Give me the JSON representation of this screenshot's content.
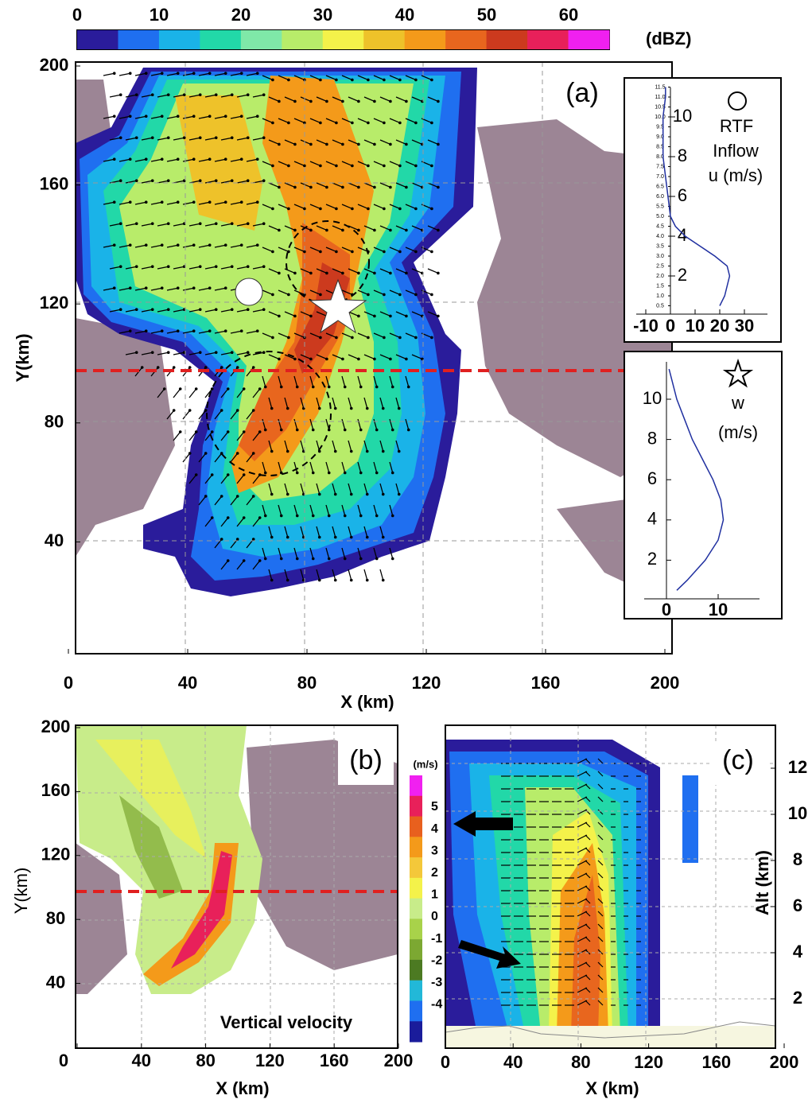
{
  "colorbar_a": {
    "unit": "(dBZ)",
    "ticks": [
      0,
      10,
      20,
      30,
      40,
      50,
      60
    ],
    "colors": [
      "#2a1c9b",
      "#1f6ff0",
      "#1ab3e8",
      "#22d8a8",
      "#7fe8a8",
      "#b8ec6a",
      "#f4f24a",
      "#eec22a",
      "#f49a1a",
      "#e8661e",
      "#cc3a1e",
      "#e8205a",
      "#f020f0"
    ]
  },
  "panel_a": {
    "label": "(a)",
    "xlabel": "X (km)",
    "ylabel": "Y(km)",
    "xticks": [
      0,
      40,
      80,
      120,
      160,
      200
    ],
    "yticks": [
      40,
      80,
      120,
      160,
      200
    ]
  },
  "inset_u": {
    "texts": [
      "RTF",
      "Inflow",
      "u (m/s)"
    ],
    "xticks": [
      -10,
      0,
      10,
      20,
      30
    ],
    "yticks": [
      2,
      4,
      6,
      8,
      10
    ],
    "minor_yticks": [
      {
        "value": 0.5,
        "label": "0.5"
      },
      {
        "value": 1,
        "label": "1.0"
      },
      {
        "value": 1.5,
        "label": "1.5"
      },
      {
        "value": 2,
        "label": "2.0"
      },
      {
        "value": 2.5,
        "label": "2.5"
      },
      {
        "value": 3,
        "label": "3.0"
      },
      {
        "value": 3.5,
        "label": "3.5"
      },
      {
        "value": 4,
        "label": "4.0"
      },
      {
        "value": 4.5,
        "label": "4.5"
      },
      {
        "value": 5,
        "label": "5.0"
      },
      {
        "value": 5.5,
        "label": "5.5"
      },
      {
        "value": 6,
        "label": "6.0"
      },
      {
        "value": 6.5,
        "label": "6.5"
      },
      {
        "value": 7,
        "label": "7.0"
      },
      {
        "value": 7.5,
        "label": "7.5"
      },
      {
        "value": 8,
        "label": "8.0"
      },
      {
        "value": 8.5,
        "label": "8.5"
      },
      {
        "value": 9,
        "label": "9.0"
      },
      {
        "value": 9.5,
        "label": "9.5"
      },
      {
        "value": 10,
        "label": "10.0"
      },
      {
        "value": 10.5,
        "label": "10.5"
      },
      {
        "value": 11,
        "label": "11.0"
      },
      {
        "value": 11.5,
        "label": "11.5"
      }
    ],
    "alt": [
      0.5,
      1,
      2,
      2.5,
      3,
      3.5,
      4,
      4.5,
      5,
      6,
      7,
      8,
      9,
      10,
      11,
      11.5
    ],
    "u": [
      20,
      22,
      24,
      23,
      18,
      12,
      6,
      2,
      0,
      -1,
      -2,
      -3,
      -3,
      -3,
      -2,
      -2
    ]
  },
  "inset_w": {
    "texts": [
      "w",
      "(m/s)"
    ],
    "xticks": [
      0,
      10
    ],
    "yticks": [
      2,
      4,
      6,
      8,
      10
    ],
    "alt": [
      0.5,
      1,
      2,
      3,
      4,
      5,
      6,
      7,
      8,
      9,
      10,
      11,
      11.5
    ],
    "w": [
      2,
      4,
      7.5,
      10,
      11,
      10.5,
      9,
      7,
      5,
      3.5,
      2,
      1,
      0.5
    ]
  },
  "panel_b": {
    "label": "(b)",
    "xlabel": "X (km)",
    "ylabel": "Y(km)",
    "annotation": "Vertical velocity",
    "xticks": [
      0,
      40,
      80,
      120,
      160,
      200
    ],
    "yticks": [
      40,
      80,
      120,
      160,
      200
    ],
    "colorbar": {
      "unit": "(m/s)",
      "ticks": [
        5,
        4,
        3,
        2,
        1,
        0,
        -1,
        -2,
        -3,
        -4
      ],
      "colors": [
        "#f020f0",
        "#e8205a",
        "#e8601e",
        "#f49a1a",
        "#f4c83a",
        "#f4f24a",
        "#c8ec8a",
        "#a8d24a",
        "#7ca832",
        "#4c7a22",
        "#22b8d8",
        "#1f6ff0",
        "#1a1c9b"
      ]
    }
  },
  "panel_c": {
    "label": "(c)",
    "xlabel": "X (km)",
    "ylabel": "Alt (km)",
    "xticks": [
      0,
      40,
      80,
      120,
      160,
      200
    ],
    "yticks": [
      2,
      4,
      6,
      8,
      10,
      12
    ]
  }
}
